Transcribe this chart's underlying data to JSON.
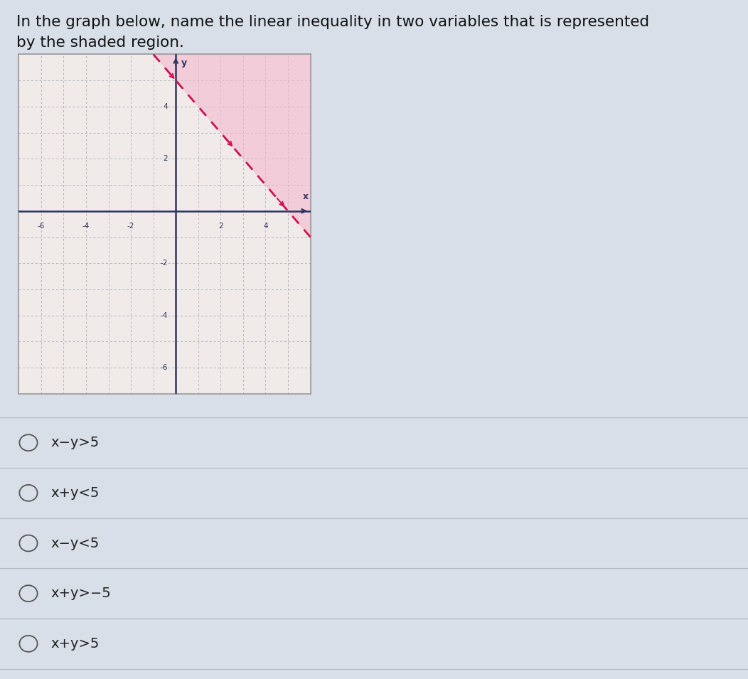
{
  "title_line1": "In the graph below, name the linear inequality in two variables that is represented",
  "title_line2": "by the shaded region.",
  "title_fontsize": 15.5,
  "xlim": [
    -7,
    6
  ],
  "ylim": [
    -7,
    6
  ],
  "xtick_vals": [
    -6,
    -4,
    -2,
    2,
    4
  ],
  "ytick_vals": [
    -6,
    -4,
    -2,
    2,
    4
  ],
  "grid_color": "#adb5bd",
  "axis_color": "#2d3561",
  "line_color": "#cc1155",
  "shade_color": "#f4b8d0",
  "shade_alpha": 0.6,
  "options": [
    "x−y>5",
    "x+y<5",
    "x−y<5",
    "x+y>−5",
    "x+y>5"
  ],
  "bg_color": "#d8dfe8",
  "graph_bg": "#f0ebe8",
  "graph_border": "#999999",
  "option_text_color": "#222222",
  "separator_color": "#b0b8c4",
  "fig_width": 10.52,
  "fig_height": 9.55
}
